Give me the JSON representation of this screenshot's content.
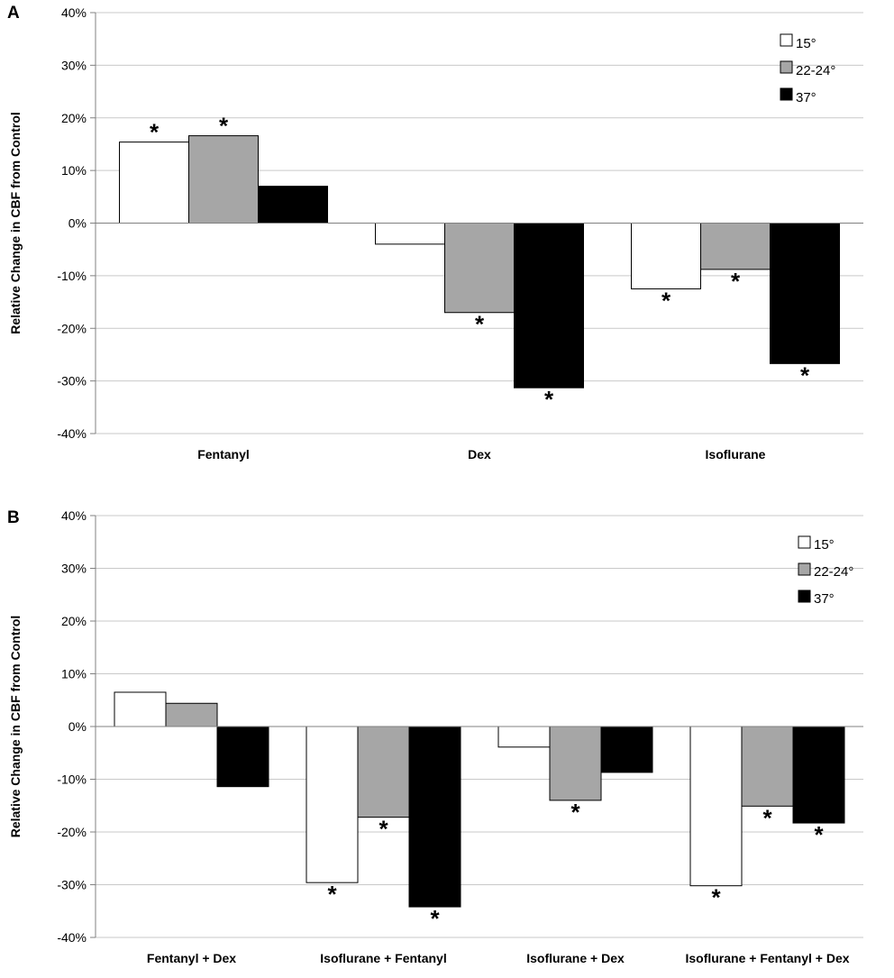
{
  "chart_data": [
    {
      "panel": "A",
      "type": "bar",
      "ylabel": "Relative Change in CBF from Control",
      "ylim": [
        -40,
        40
      ],
      "yticks": [
        "40%",
        "30%",
        "20%",
        "10%",
        "0%",
        "-10%",
        "-20%",
        "-30%",
        "-40%"
      ],
      "categories": [
        "Fentanyl",
        "Dex",
        "Isoflurane"
      ],
      "series": [
        {
          "name": "15°",
          "color": "#ffffff",
          "values": [
            15.4,
            -4.0,
            -12.5
          ],
          "significant": [
            true,
            false,
            true
          ]
        },
        {
          "name": "22-24°",
          "color": "#a6a6a6",
          "values": [
            16.6,
            -17.0,
            -8.8
          ],
          "significant": [
            true,
            true,
            true
          ]
        },
        {
          "name": "37°",
          "color": "#000000",
          "values": [
            7.0,
            -31.3,
            -26.7
          ],
          "significant": [
            false,
            true,
            true
          ]
        }
      ],
      "significance_marker": "*",
      "legend": "top-right",
      "grid": true
    },
    {
      "panel": "B",
      "type": "bar",
      "ylabel": "Relative Change in CBF from Control",
      "ylim": [
        -40,
        40
      ],
      "yticks": [
        "40%",
        "30%",
        "20%",
        "10%",
        "0%",
        "-10%",
        "-20%",
        "-30%",
        "-40%"
      ],
      "categories": [
        "Fentanyl + Dex",
        "Isoflurane + Fentanyl",
        "Isoflurane + Dex",
        "Isoflurane + Fentanyl + Dex"
      ],
      "series": [
        {
          "name": "15°",
          "color": "#ffffff",
          "values": [
            6.5,
            -29.6,
            -3.9,
            -30.2
          ],
          "significant": [
            false,
            true,
            false,
            true
          ]
        },
        {
          "name": "22-24°",
          "color": "#a6a6a6",
          "values": [
            4.4,
            -17.2,
            -14.0,
            -15.1
          ],
          "significant": [
            false,
            true,
            true,
            true
          ]
        },
        {
          "name": "37°",
          "color": "#000000",
          "values": [
            -11.4,
            -34.2,
            -8.7,
            -18.3
          ],
          "significant": [
            false,
            true,
            false,
            true
          ]
        }
      ],
      "significance_marker": "*",
      "legend": "top-right",
      "grid": true
    }
  ]
}
